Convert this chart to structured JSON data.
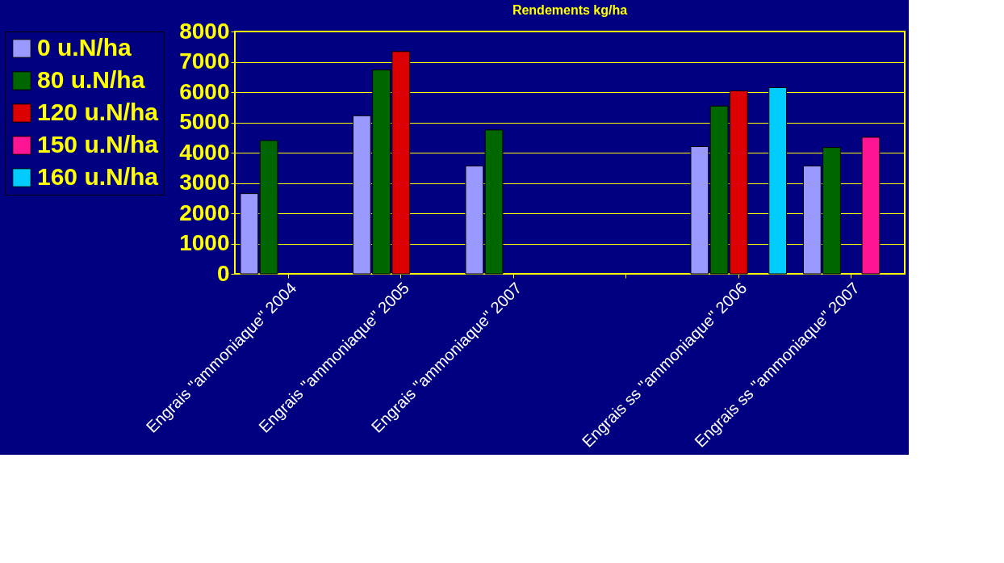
{
  "chart_data": {
    "type": "bar",
    "title": "Rendements kg/ha",
    "categories": [
      "Engrais \"ammoniaque\" 2004",
      "Engrais \"ammoniaque\" 2005",
      "Engrais \"ammoniaque\" 2007",
      null,
      "Engrais ss \"ammoniaque\" 2006",
      "Engrais ss \"ammoniaque\" 2007"
    ],
    "series": [
      {
        "name": "0 u.N/ha",
        "color": "#9999ff",
        "values": [
          2650,
          5220,
          3560,
          null,
          4200,
          3560
        ]
      },
      {
        "name": "80 u.N/ha",
        "color": "#006600",
        "values": [
          4400,
          6730,
          4750,
          null,
          5540,
          4170
        ]
      },
      {
        "name": "120 u.N/ha",
        "color": "#dd0000",
        "values": [
          null,
          7340,
          null,
          null,
          6040,
          null
        ]
      },
      {
        "name": "150 u.N/ha",
        "color": "#ff1493",
        "values": [
          null,
          null,
          null,
          null,
          null,
          4510
        ]
      },
      {
        "name": "160 u.N/ha",
        "color": "#00ccff",
        "values": [
          null,
          null,
          null,
          null,
          6150,
          null
        ]
      }
    ],
    "ylim": [
      0,
      8000
    ],
    "yticks": [
      0,
      1000,
      2000,
      3000,
      4000,
      5000,
      6000,
      7000,
      8000
    ],
    "grid": "y",
    "legend": "left"
  }
}
